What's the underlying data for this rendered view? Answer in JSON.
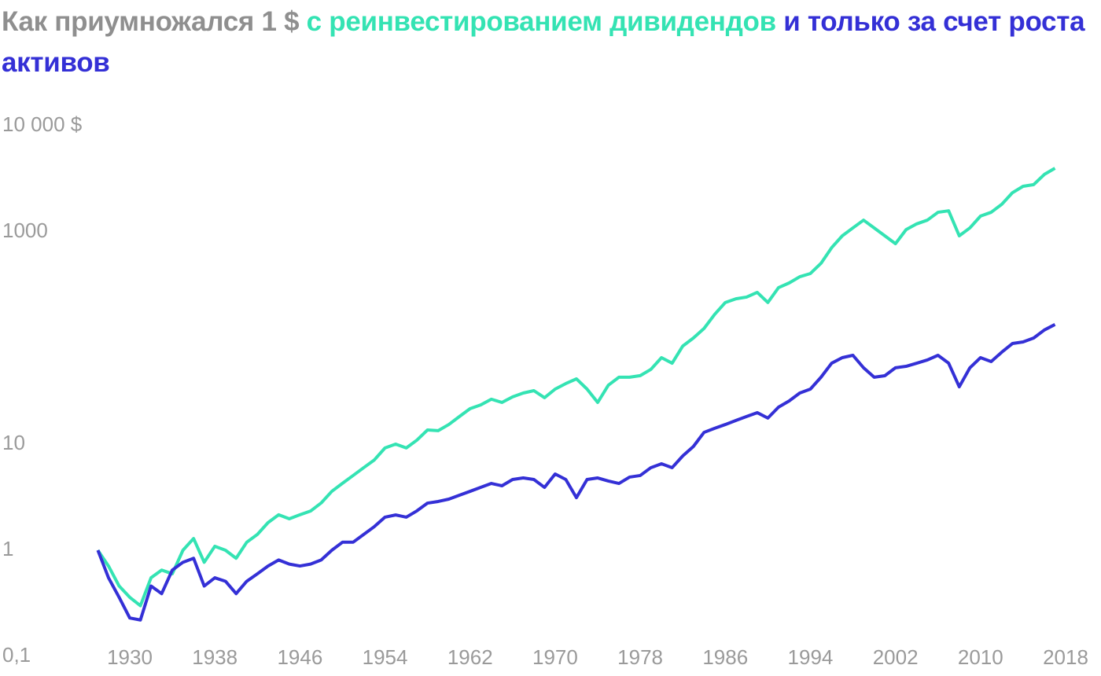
{
  "chart_data": {
    "type": "line",
    "title": "Как приумножался 1 $",
    "log_scale": true,
    "xlim": [
      1925,
      2018
    ],
    "xticks": [
      1930,
      1938,
      1946,
      1954,
      1962,
      1970,
      1978,
      1986,
      1994,
      2002,
      2010,
      2018
    ],
    "ylim": [
      0.1,
      10000
    ],
    "yticks": [
      {
        "value": 0.1,
        "label": "0,1"
      },
      1,
      10,
      1000,
      {
        "value": 10000,
        "label": "10 000 $"
      }
    ],
    "x": [
      1927,
      1928,
      1929,
      1930,
      1931,
      1932,
      1933,
      1934,
      1935,
      1936,
      1937,
      1938,
      1939,
      1940,
      1941,
      1942,
      1943,
      1944,
      1945,
      1946,
      1947,
      1948,
      1949,
      1950,
      1951,
      1952,
      1953,
      1954,
      1955,
      1956,
      1957,
      1958,
      1959,
      1960,
      1961,
      1962,
      1963,
      1964,
      1965,
      1966,
      1967,
      1968,
      1969,
      1970,
      1971,
      1972,
      1973,
      1974,
      1975,
      1976,
      1977,
      1978,
      1979,
      1980,
      1981,
      1982,
      1983,
      1984,
      1985,
      1986,
      1987,
      1988,
      1989,
      1990,
      1991,
      1992,
      1993,
      1994,
      1995,
      1996,
      1997,
      1998,
      1999,
      2000,
      2001,
      2002,
      2003,
      2004,
      2005,
      2006,
      2007,
      2008,
      2009,
      2010,
      2011,
      2012,
      2013,
      2014,
      2015,
      2016,
      2017
    ],
    "series": [
      {
        "name": "с реинвестированием дивидендов",
        "color": "#34e3b3",
        "values": [
          1.0,
          0.71,
          0.46,
          0.36,
          0.3,
          0.55,
          0.65,
          0.6,
          1.0,
          1.29,
          0.77,
          1.09,
          1.0,
          0.84,
          1.19,
          1.41,
          1.82,
          2.16,
          1.98,
          2.16,
          2.34,
          2.79,
          3.59,
          4.27,
          5.06,
          6.0,
          7.1,
          9.2,
          10.0,
          9.2,
          10.9,
          13.6,
          13.4,
          15.3,
          18.2,
          21.6,
          23.4,
          26.5,
          24.7,
          27.9,
          30.3,
          31.9,
          27.4,
          33.0,
          37.2,
          41.2,
          33.0,
          24.7,
          35.9,
          42.7,
          42.7,
          44.2,
          50.6,
          65.3,
          57.9,
          84,
          100,
          123,
          167,
          216,
          234,
          243,
          269,
          216,
          298,
          330,
          378,
          405,
          506,
          710,
          918,
          1090,
          1290,
          1090,
          918,
          774,
          1050,
          1190,
          1290,
          1530,
          1580,
          918,
          1090,
          1410,
          1530,
          1820,
          2340,
          2690,
          2790,
          3480,
          3980
        ]
      },
      {
        "name": "и только за счет роста активов",
        "color": "#3430d6",
        "values": [
          1.0,
          0.55,
          0.36,
          0.23,
          0.22,
          0.46,
          0.39,
          0.65,
          0.77,
          0.84,
          0.46,
          0.55,
          0.51,
          0.39,
          0.51,
          0.6,
          0.71,
          0.81,
          0.74,
          0.71,
          0.74,
          0.81,
          1.0,
          1.19,
          1.19,
          1.41,
          1.67,
          2.05,
          2.15,
          2.05,
          2.35,
          2.78,
          2.88,
          3.03,
          3.3,
          3.59,
          3.91,
          4.26,
          4.05,
          4.64,
          4.8,
          4.64,
          3.91,
          5.23,
          4.64,
          3.13,
          4.64,
          4.8,
          4.49,
          4.26,
          4.89,
          5.06,
          6.0,
          6.53,
          6.0,
          7.74,
          9.5,
          12.9,
          14.1,
          15.3,
          16.7,
          18.2,
          19.8,
          17.6,
          22.3,
          25.5,
          30.3,
          33.0,
          42.7,
          57.9,
          65.3,
          68.7,
          52.4,
          42.7,
          44.1,
          52.4,
          54.1,
          57.9,
          62.1,
          68.7,
          57.9,
          34.7,
          52.4,
          65.3,
          60.0,
          73.6,
          88.7,
          91.8,
          100,
          119,
          134
        ]
      }
    ]
  }
}
